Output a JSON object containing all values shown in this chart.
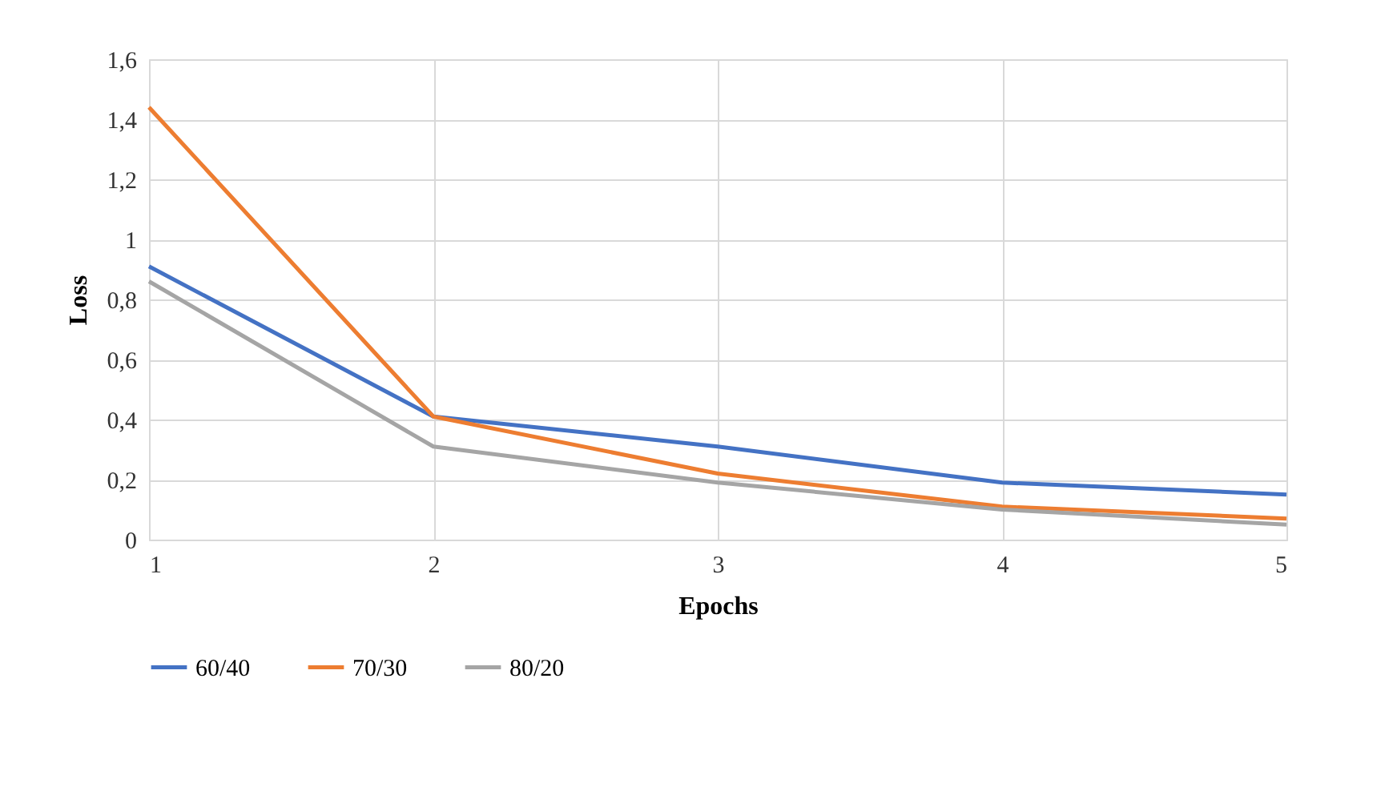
{
  "chart_data": {
    "type": "line",
    "xlabel": "Epochs",
    "ylabel": "Loss",
    "x": [
      1,
      2,
      3,
      4,
      5
    ],
    "series": [
      {
        "name": "60/40",
        "color": "#4472c4",
        "values": [
          0.91,
          0.41,
          0.31,
          0.19,
          0.15
        ]
      },
      {
        "name": "70/30",
        "color": "#ed7d31",
        "values": [
          1.44,
          0.41,
          0.22,
          0.11,
          0.07
        ]
      },
      {
        "name": "80/20",
        "color": "#a5a5a5",
        "values": [
          0.86,
          0.31,
          0.19,
          0.1,
          0.05
        ]
      }
    ],
    "xlim": [
      1,
      5
    ],
    "xticks": [
      1,
      2,
      3,
      4,
      5
    ],
    "ylim": [
      0,
      1.6
    ],
    "yticks": [
      0,
      {
        "value": 0.2,
        "label": "0,2"
      },
      {
        "value": 0.4,
        "label": "0,4"
      },
      {
        "value": 0.6,
        "label": "0,6"
      },
      {
        "value": 0.8,
        "label": "0,8"
      },
      1,
      {
        "value": 1.2,
        "label": "1,2"
      },
      {
        "value": 1.4,
        "label": "1,4"
      },
      {
        "value": 1.6,
        "label": "1,6"
      }
    ],
    "grid": true,
    "legend": "bottom",
    "marker": "none",
    "line_style": "solid"
  }
}
